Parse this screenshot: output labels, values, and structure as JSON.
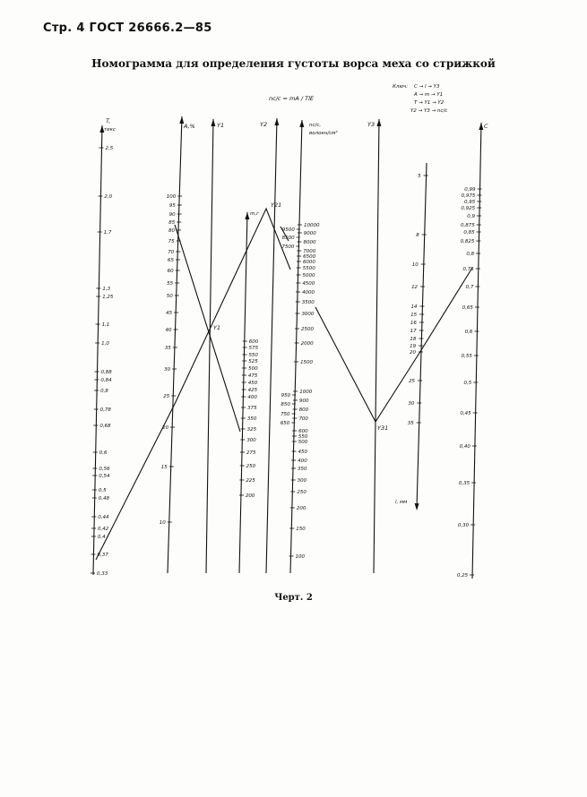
{
  "header": "Стр. 4 ГОСТ 26666.2—85",
  "title": "Номограмма для определения густоты ворса меха со стрижкой",
  "formula": "nc/c = mA / TlE",
  "key": {
    "label": "Ключ:",
    "lines": [
      "C → l → Y3",
      "A → m → Y1",
      "T → Y1 → Y2",
      "Y2 → Y3 → nc/c"
    ]
  },
  "caption": "Черт. 2",
  "axes": {
    "T": {
      "name": "T,",
      "unit": "текс",
      "ticks": [
        "2,5",
        "2,0",
        "1,7",
        "1,3",
        "1,25",
        "1,1",
        "1,0",
        "0,88",
        "0,84",
        "0,8",
        "0,78",
        "0,68",
        "0,6",
        "0,56",
        "0,54",
        "0,5",
        "0,48",
        "0,44",
        "0,42",
        "0,4",
        "0,37",
        "0,33"
      ]
    },
    "A": {
      "name": "A,%",
      "ticks": [
        "100",
        "95",
        "90",
        "85",
        "80",
        "75",
        "70",
        "65",
        "60",
        "55",
        "50",
        "45",
        "40",
        "35",
        "30",
        "25",
        "20",
        "15",
        "10"
      ]
    },
    "Y1": {
      "name": "Y1"
    },
    "m": {
      "name": "m,г",
      "ticks": [
        "600",
        "575",
        "550",
        "525",
        "500",
        "475",
        "450",
        "425",
        "400",
        "375",
        "350",
        "325",
        "300",
        "275",
        "250",
        "225",
        "200"
      ]
    },
    "Y2": {
      "name": "Y2"
    },
    "n": {
      "name": "nc/c,",
      "unit": "волокн/см²",
      "ticks_upper": [
        "10000",
        "9000",
        "8000",
        "7000",
        "6500",
        "6000",
        "5500",
        "5000",
        "4500",
        "4000",
        "3500",
        "3000",
        "2500",
        "2000",
        "1500"
      ],
      "ticks_upper_left": [
        "9500",
        "8500",
        "7500"
      ],
      "ticks_lower": [
        "1000",
        "900",
        "800",
        "700",
        "600",
        "550",
        "500",
        "450",
        "400",
        "350",
        "300",
        "250",
        "200",
        "150",
        "100"
      ],
      "ticks_lower_left": [
        "950",
        "850",
        "750",
        "650"
      ]
    },
    "Y3": {
      "name": "Y3"
    },
    "l": {
      "name": "l, мм",
      "ticks": [
        "5",
        "8",
        "10",
        "12",
        "14",
        "15",
        "16",
        "17",
        "18",
        "19",
        "20",
        "25",
        "30",
        "35"
      ]
    },
    "C": {
      "name": "C",
      "ticks": [
        "0,99",
        "0,975",
        "0,95",
        "0,925",
        "0,9",
        "0,875",
        "0,85",
        "0,825",
        "0,8",
        "0,75",
        "0,7",
        "0,65",
        "0,6",
        "0,55",
        "0,5",
        "0,45",
        "0,40",
        "0,35",
        "0,30",
        "0,25"
      ]
    }
  },
  "points": {
    "Y1": "Y1",
    "Y2": "Y21",
    "Y3": "Y31"
  }
}
